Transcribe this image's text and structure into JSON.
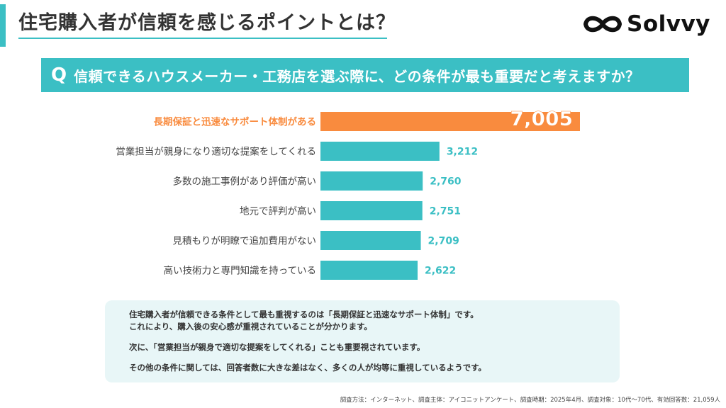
{
  "header": {
    "title": "住宅購入者が信頼を感じるポイントとは？",
    "logo_text": "Solvvy",
    "accent_color": "#3bbfc4"
  },
  "question": {
    "mark": "Q",
    "text": "信頼できるハウスメーカー・工務店を選ぶ際に、どの条件が最も重要だと考えますか？"
  },
  "chart_data": {
    "type": "bar",
    "orientation": "horizontal",
    "categories": [
      "長期保証と迅速なサポート体制がある",
      "営業担当が親身になり適切な提案をしてくれる",
      "多数の施工事例があり評価が高い",
      "地元で評判が高い",
      "見積もりが明瞭で追加費用がない",
      "高い技術力と専門知識を持っている"
    ],
    "values": [
      7005,
      3212,
      2760,
      2751,
      2709,
      2622
    ],
    "value_labels": [
      "7,005",
      "3,212",
      "2,760",
      "2,751",
      "2,709",
      "2,622"
    ],
    "highlight_index": 0,
    "highlight_color": "#f98b3e",
    "bar_color": "#3bbfc4",
    "xlim": [
      0,
      7005
    ],
    "grid": false,
    "legend": false
  },
  "summary": {
    "line1": "住宅購入者が信頼できる条件として最も重視するのは「長期保証と迅速なサポート体制」です。",
    "line2": "これにより、購入後の安心感が重視されていることが分かります。",
    "line3": "次に、「営業担当が親身で適切な提案をしてくれる」ことも重要視されています。",
    "line4": "その他の条件に関しては、回答者数に大きな差はなく、多くの人が均等に重視しているようです。"
  },
  "footnote": "調査方法：インターネット、調査主体：アイコニットアンケート、調査時期：2025年4月、調査対象：10代〜70代、有効回答数：21,059人"
}
